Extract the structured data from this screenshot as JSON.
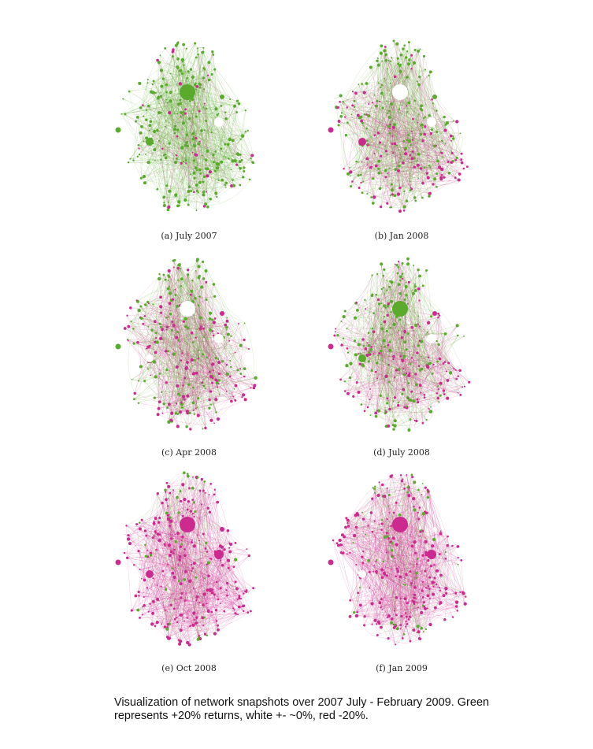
{
  "panels": [
    {
      "caption": "(a) July 2007",
      "mix": 0.08
    },
    {
      "caption": "(b) Jan 2008",
      "mix": 0.35
    },
    {
      "caption": "(c) Apr 2008",
      "mix": 0.45
    },
    {
      "caption": "(d) July 2008",
      "mix": 0.42
    },
    {
      "caption": "(e) Oct 2008",
      "mix": 0.88
    },
    {
      "caption": "(f) Jan 2009",
      "mix": 0.78
    }
  ],
  "footer": {
    "line1": "Visualization of network snapshots over 2007 July - February 2009. Green",
    "line2": "represents +20% returns, white +- ~0%, red -20%."
  },
  "colors": {
    "green": "#5aaa2e",
    "white": "#ffffff",
    "red": "#cc2a8e"
  }
}
